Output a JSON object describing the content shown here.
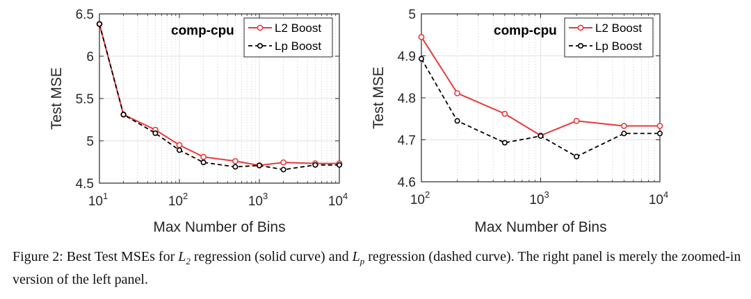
{
  "caption": {
    "label": "Figure 2:",
    "p1": "Best Test MSEs for",
    "m1_base": "L",
    "m1_sub": "2",
    "p2": "regression (solid curve) and",
    "m2_base": "L",
    "m2_sub": "p",
    "p3": "regression (dashed curve).  The right panel is merely the zoomed-in version of the left panel."
  },
  "colors": {
    "l2": "#e8383b",
    "lp": "#000000",
    "grid": "#e1e1e1",
    "axis": "#262626"
  },
  "chart_data": [
    {
      "type": "line",
      "title": "comp-cpu",
      "xlabel": "Max Number of Bins",
      "ylabel": "Test MSE",
      "xscale": "log",
      "xlim": [
        10,
        10000
      ],
      "ylim": [
        4.5,
        6.5
      ],
      "xticks": [
        {
          "base": "10",
          "exp": "1",
          "value": 10
        },
        {
          "base": "10",
          "exp": "2",
          "value": 100
        },
        {
          "base": "10",
          "exp": "3",
          "value": 1000
        },
        {
          "base": "10",
          "exp": "4",
          "value": 10000
        }
      ],
      "yticks": [
        "4.5",
        "5",
        "5.5",
        "6",
        "6.5"
      ],
      "grid": true,
      "legend_position": "top-right",
      "series": [
        {
          "name": "L2 Boost",
          "style": "solid",
          "x": [
            10,
            20,
            50,
            100,
            200,
            500,
            1000,
            2000,
            5000,
            10000
          ],
          "y": [
            6.38,
            5.31,
            5.13,
            4.95,
            4.81,
            4.76,
            4.71,
            4.745,
            4.733,
            4.733
          ]
        },
        {
          "name": "Lp Boost",
          "style": "dashed",
          "x": [
            10,
            20,
            50,
            100,
            200,
            500,
            1000,
            2000,
            5000,
            10000
          ],
          "y": [
            6.38,
            5.31,
            5.09,
            4.89,
            4.745,
            4.693,
            4.709,
            4.66,
            4.715,
            4.715
          ]
        }
      ]
    },
    {
      "type": "line",
      "title": "comp-cpu",
      "xlabel": "Max Number of Bins",
      "ylabel": "Test MSE",
      "xscale": "log",
      "xlim": [
        100,
        10000
      ],
      "ylim": [
        4.6,
        5.0
      ],
      "xticks": [
        {
          "base": "10",
          "exp": "2",
          "value": 100
        },
        {
          "base": "10",
          "exp": "3",
          "value": 1000
        },
        {
          "base": "10",
          "exp": "4",
          "value": 10000
        }
      ],
      "yticks": [
        "4.6",
        "4.7",
        "4.8",
        "4.9",
        "5"
      ],
      "grid": true,
      "legend_position": "top-right",
      "series": [
        {
          "name": "L2 Boost",
          "style": "solid",
          "x": [
            100,
            200,
            500,
            1000,
            2000,
            5000,
            10000
          ],
          "y": [
            4.945,
            4.811,
            4.762,
            4.71,
            4.745,
            4.733,
            4.733
          ]
        },
        {
          "name": "Lp Boost",
          "style": "dashed",
          "x": [
            100,
            200,
            500,
            1000,
            2000,
            5000,
            10000
          ],
          "y": [
            4.893,
            4.745,
            4.693,
            4.709,
            4.66,
            4.715,
            4.715
          ]
        }
      ]
    }
  ]
}
